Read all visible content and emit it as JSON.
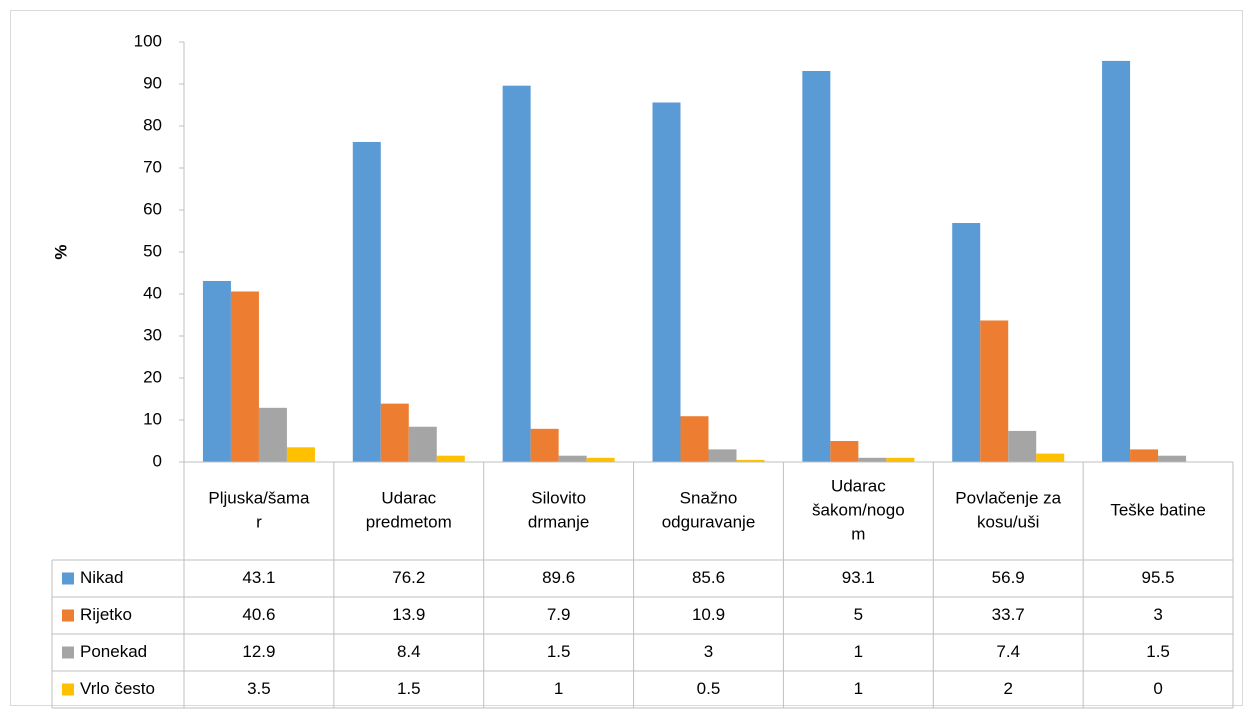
{
  "chart_data": {
    "type": "bar",
    "ylabel": "%",
    "ylim": [
      0,
      100
    ],
    "yticks": [
      0,
      10,
      20,
      30,
      40,
      50,
      60,
      70,
      80,
      90,
      100
    ],
    "categories": [
      [
        "Pljuska/šama",
        "r"
      ],
      [
        "Udarac",
        "predmetom"
      ],
      [
        "Silovito",
        "drmanje"
      ],
      [
        "Snažno",
        "odguravanje"
      ],
      [
        "Udarac",
        "šakom/nogo",
        "m"
      ],
      [
        "Povlačenje za",
        "kosu/uši"
      ],
      [
        "Teške batine"
      ]
    ],
    "series": [
      {
        "name": "Nikad",
        "color": "#5b9bd5",
        "values": [
          43.1,
          76.2,
          89.6,
          85.6,
          93.1,
          56.9,
          95.5
        ]
      },
      {
        "name": "Rijetko",
        "color": "#ed7d31",
        "values": [
          40.6,
          13.9,
          7.9,
          10.9,
          5,
          33.7,
          3
        ]
      },
      {
        "name": "Ponekad",
        "color": "#a5a5a5",
        "values": [
          12.9,
          8.4,
          1.5,
          3,
          1,
          7.4,
          1.5
        ]
      },
      {
        "name": "Vrlo često",
        "color": "#ffc000",
        "values": [
          3.5,
          1.5,
          1,
          0.5,
          1,
          2,
          0
        ]
      }
    ],
    "grid": false,
    "legend": "data-table"
  }
}
